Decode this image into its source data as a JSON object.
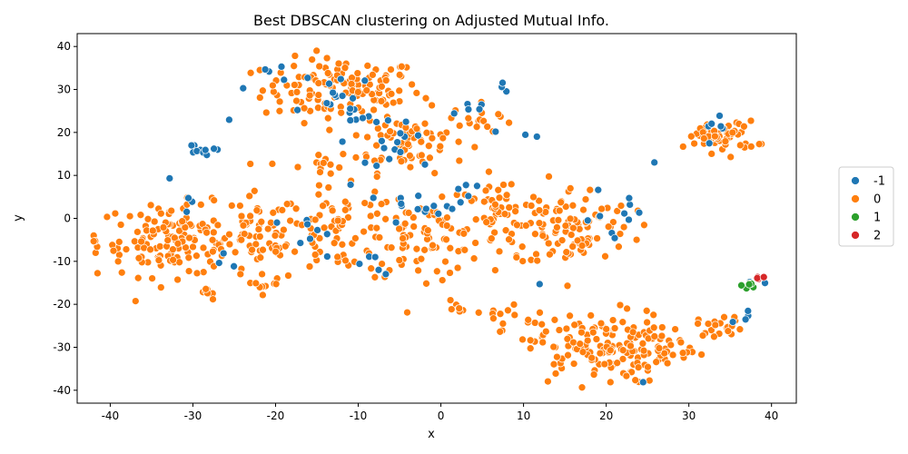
{
  "chart_data": {
    "type": "scatter",
    "title": "Best DBSCAN clustering on Adjusted Mutual Info.",
    "xlabel": "x",
    "ylabel": "y",
    "xlim": [
      -44,
      43
    ],
    "ylim": [
      -43,
      43
    ],
    "xticks": [
      -40,
      -30,
      -20,
      -10,
      0,
      10,
      20,
      30,
      40
    ],
    "yticks": [
      -40,
      -30,
      -20,
      -10,
      0,
      10,
      20,
      30,
      40
    ],
    "grid": false,
    "legend_position": "right",
    "series": [
      {
        "name": "-1",
        "color": "#1f77b4",
        "clusters": [
          {
            "cx": -30,
            "cy": 16,
            "rx": 1.2,
            "ry": 1.0,
            "n": 6
          },
          {
            "cx": -28,
            "cy": 16,
            "rx": 1.0,
            "ry": 0.8,
            "n": 4
          },
          {
            "cx": -20,
            "cy": 35,
            "rx": 1.5,
            "ry": 3.0,
            "n": 4
          },
          {
            "cx": -12,
            "cy": 27,
            "rx": 4.0,
            "ry": 6.0,
            "n": 14
          },
          {
            "cx": -6,
            "cy": 18,
            "rx": 6.0,
            "ry": 6.0,
            "n": 22
          },
          {
            "cx": 5,
            "cy": 26,
            "rx": 2.0,
            "ry": 1.5,
            "n": 5
          },
          {
            "cx": 8,
            "cy": 30,
            "rx": 1.0,
            "ry": 2.5,
            "n": 3
          },
          {
            "cx": 10,
            "cy": 20,
            "rx": 1.5,
            "ry": 2.0,
            "n": 3
          },
          {
            "cx": -15,
            "cy": -4,
            "rx": 4.0,
            "ry": 4.0,
            "n": 8
          },
          {
            "cx": -5,
            "cy": 3,
            "rx": 3.0,
            "ry": 3.0,
            "n": 10
          },
          {
            "cx": 3,
            "cy": 6,
            "rx": 3.0,
            "ry": 3.0,
            "n": 8
          },
          {
            "cx": 20,
            "cy": 0,
            "rx": 4.0,
            "ry": 5.0,
            "n": 10
          },
          {
            "cx": -30,
            "cy": 3,
            "rx": 1.5,
            "ry": 1.5,
            "n": 3
          },
          {
            "cx": -26,
            "cy": -10,
            "rx": 2.0,
            "ry": 2.0,
            "n": 3
          },
          {
            "cx": -8,
            "cy": -10,
            "rx": 2.5,
            "ry": 3.0,
            "n": 5
          },
          {
            "cx": 25,
            "cy": -38,
            "rx": 1.0,
            "ry": 1.0,
            "n": 1
          },
          {
            "cx": 13,
            "cy": -16,
            "rx": 1.0,
            "ry": 1.0,
            "n": 1
          },
          {
            "cx": 34,
            "cy": 21,
            "rx": 2.0,
            "ry": 2.0,
            "n": 6
          },
          {
            "cx": 36,
            "cy": -22,
            "rx": 2.5,
            "ry": 3.0,
            "n": 4
          },
          {
            "cx": 38,
            "cy": -15,
            "rx": 1.0,
            "ry": 1.0,
            "n": 2
          },
          {
            "cx": 26,
            "cy": 13,
            "rx": 0.5,
            "ry": 0.5,
            "n": 1
          },
          {
            "cx": -33,
            "cy": 9,
            "rx": 0.5,
            "ry": 0.5,
            "n": 1
          },
          {
            "cx": -26,
            "cy": 23,
            "rx": 0.5,
            "ry": 0.5,
            "n": 1
          },
          {
            "cx": -24,
            "cy": 30,
            "rx": 0.5,
            "ry": 0.5,
            "n": 1
          }
        ]
      },
      {
        "name": "0",
        "color": "#ff7f0e",
        "clusters": [
          {
            "cx": -12,
            "cy": 30,
            "rx": 8.0,
            "ry": 6.0,
            "n": 130
          },
          {
            "cx": -4,
            "cy": 18,
            "rx": 6.0,
            "ry": 6.0,
            "n": 70
          },
          {
            "cx": 5,
            "cy": 23,
            "rx": 3.0,
            "ry": 3.0,
            "n": 15
          },
          {
            "cx": -32,
            "cy": -5,
            "rx": 8.0,
            "ry": 7.0,
            "n": 150
          },
          {
            "cx": -22,
            "cy": -5,
            "rx": 4.0,
            "ry": 9.0,
            "n": 50
          },
          {
            "cx": -12,
            "cy": -3,
            "rx": 6.0,
            "ry": 8.0,
            "n": 75
          },
          {
            "cx": -2,
            "cy": -5,
            "rx": 6.0,
            "ry": 7.0,
            "n": 75
          },
          {
            "cx": 7,
            "cy": 0,
            "rx": 5.0,
            "ry": 8.0,
            "n": 55
          },
          {
            "cx": 16,
            "cy": -2,
            "rx": 6.0,
            "ry": 8.0,
            "n": 100
          },
          {
            "cx": 19,
            "cy": -30,
            "rx": 7.0,
            "ry": 7.0,
            "n": 140
          },
          {
            "cx": 27,
            "cy": -30,
            "rx": 3.0,
            "ry": 4.0,
            "n": 20
          },
          {
            "cx": 34,
            "cy": 19,
            "rx": 3.5,
            "ry": 3.0,
            "n": 60
          },
          {
            "cx": 34,
            "cy": -25,
            "rx": 2.5,
            "ry": 2.0,
            "n": 20
          },
          {
            "cx": 7,
            "cy": -23,
            "rx": 2.0,
            "ry": 3.0,
            "n": 10
          },
          {
            "cx": 2,
            "cy": -21,
            "rx": 2.0,
            "ry": 1.5,
            "n": 8
          },
          {
            "cx": -15,
            "cy": 12,
            "rx": 3.0,
            "ry": 3.0,
            "n": 14
          },
          {
            "cx": -28,
            "cy": -17,
            "rx": 2.0,
            "ry": 1.5,
            "n": 8
          },
          {
            "cx": -21,
            "cy": -15,
            "rx": 2.0,
            "ry": 1.5,
            "n": 6
          },
          {
            "cx": 12,
            "cy": -27,
            "rx": 1.5,
            "ry": 2.5,
            "n": 6
          },
          {
            "cx": 30,
            "cy": -32,
            "rx": 1.5,
            "ry": 1.5,
            "n": 5
          }
        ]
      },
      {
        "name": "1",
        "color": "#2ca02c",
        "clusters": [
          {
            "cx": 37.5,
            "cy": -15.5,
            "rx": 0.8,
            "ry": 0.6,
            "n": 8
          }
        ]
      },
      {
        "name": "2",
        "color": "#d62728",
        "clusters": [
          {
            "cx": 38.5,
            "cy": -14,
            "rx": 0.6,
            "ry": 0.4,
            "n": 7
          }
        ]
      }
    ]
  }
}
